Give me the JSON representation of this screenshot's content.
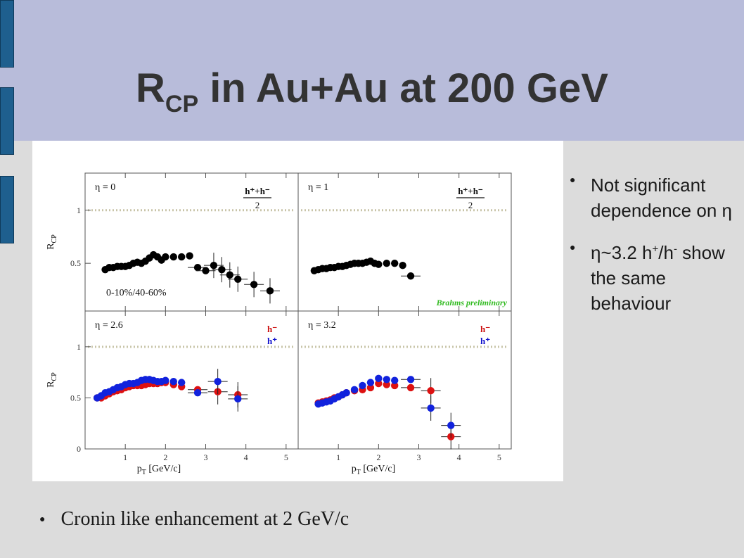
{
  "slide": {
    "title_main": "R",
    "title_sub": "CP",
    "title_rest": " in Au+Au at 200 GeV",
    "bullets_right": [
      {
        "text": "Not significant dependence on η"
      },
      {
        "pre": "η~3.2 h",
        "sup1": "+",
        "mid": "/h",
        "sup2": "-",
        "post": " show the same behaviour"
      }
    ],
    "bullet_bottom": "Cronin like enhancement at 2 GeV/c"
  },
  "chart_data": {
    "type": "scatter",
    "xlabel_main": "p",
    "xlabel_sub": "T",
    "xlabel_rest": " [GeV/c]",
    "ylabel_main": "R",
    "ylabel_sub": "CP",
    "xlim": [
      0,
      5.3
    ],
    "x_ticks": [
      "1",
      "2",
      "3",
      "4",
      "5"
    ],
    "reference_line": 1,
    "reference_color": "#c8c4a8",
    "panels": [
      {
        "id": "eta0",
        "label": "η = 0",
        "ylim": [
          0.05,
          1.35
        ],
        "y_ticks": [
          "1",
          "0.5"
        ],
        "legend_frac": {
          "num": "h⁺+h⁻",
          "den": "2"
        },
        "annotation": "0-10%/40-60%",
        "series": [
          {
            "color": "#000000",
            "x": [
              0.5,
              0.6,
              0.7,
              0.8,
              0.9,
              1.0,
              1.1,
              1.2,
              1.3,
              1.4,
              1.5,
              1.6,
              1.7,
              1.8,
              1.9,
              2.0,
              2.2,
              2.4,
              2.6,
              2.8,
              3.0,
              3.2,
              3.4,
              3.6,
              3.8,
              4.2,
              4.6
            ],
            "y": [
              0.44,
              0.46,
              0.46,
              0.47,
              0.47,
              0.47,
              0.48,
              0.5,
              0.51,
              0.5,
              0.52,
              0.55,
              0.58,
              0.56,
              0.53,
              0.56,
              0.56,
              0.56,
              0.57,
              0.46,
              0.43,
              0.48,
              0.44,
              0.39,
              0.35,
              0.3,
              0.24
            ]
          }
        ]
      },
      {
        "id": "eta1",
        "label": "η = 1",
        "ylim": [
          0.05,
          1.35
        ],
        "y_ticks": [],
        "legend_frac": {
          "num": "h⁺+h⁻",
          "den": "2"
        },
        "watermark": "Brahms preliminary",
        "series": [
          {
            "color": "#000000",
            "x": [
              0.4,
              0.5,
              0.6,
              0.7,
              0.8,
              0.9,
              1.0,
              1.1,
              1.2,
              1.3,
              1.4,
              1.5,
              1.6,
              1.7,
              1.8,
              1.9,
              2.0,
              2.2,
              2.4,
              2.6,
              2.8
            ],
            "y": [
              0.43,
              0.44,
              0.45,
              0.45,
              0.46,
              0.46,
              0.47,
              0.47,
              0.48,
              0.49,
              0.5,
              0.5,
              0.5,
              0.51,
              0.52,
              0.5,
              0.49,
              0.5,
              0.5,
              0.48,
              0.38
            ]
          }
        ]
      },
      {
        "id": "eta26",
        "label": "η = 2.6",
        "ylim": [
          0,
          1.35
        ],
        "y_ticks": [
          "1",
          "0.5",
          "0"
        ],
        "legend": [
          {
            "name": "h⁻",
            "color": "#cc1111"
          },
          {
            "name": "h⁺",
            "color": "#1111cc"
          }
        ],
        "series": [
          {
            "name": "h⁻",
            "color": "#dd1111",
            "x": [
              0.3,
              0.4,
              0.5,
              0.6,
              0.7,
              0.8,
              0.9,
              1.0,
              1.1,
              1.2,
              1.3,
              1.4,
              1.5,
              1.6,
              1.7,
              1.8,
              1.9,
              2.0,
              2.2,
              2.4,
              2.8,
              3.3,
              3.8
            ],
            "y": [
              0.5,
              0.5,
              0.52,
              0.54,
              0.56,
              0.57,
              0.58,
              0.6,
              0.61,
              0.62,
              0.62,
              0.62,
              0.63,
              0.64,
              0.64,
              0.64,
              0.65,
              0.65,
              0.63,
              0.61,
              0.58,
              0.56,
              0.53
            ]
          },
          {
            "name": "h⁺",
            "color": "#1122dd",
            "x": [
              0.3,
              0.4,
              0.5,
              0.6,
              0.7,
              0.8,
              0.9,
              1.0,
              1.1,
              1.2,
              1.3,
              1.4,
              1.5,
              1.6,
              1.7,
              1.8,
              1.9,
              2.0,
              2.2,
              2.4,
              2.8,
              3.3,
              3.8
            ],
            "y": [
              0.5,
              0.52,
              0.55,
              0.56,
              0.58,
              0.6,
              0.61,
              0.63,
              0.64,
              0.64,
              0.65,
              0.67,
              0.68,
              0.68,
              0.67,
              0.66,
              0.66,
              0.67,
              0.66,
              0.65,
              0.55,
              0.66,
              0.49
            ]
          }
        ]
      },
      {
        "id": "eta32",
        "label": "η = 3.2",
        "ylim": [
          0,
          1.35
        ],
        "y_ticks": [],
        "legend": [
          {
            "name": "h⁻",
            "color": "#cc1111"
          },
          {
            "name": "h⁺",
            "color": "#1111cc"
          }
        ],
        "series": [
          {
            "name": "h⁻",
            "color": "#dd1111",
            "x": [
              0.5,
              0.6,
              0.7,
              0.8,
              0.9,
              1.0,
              1.1,
              1.2,
              1.4,
              1.6,
              1.8,
              2.0,
              2.2,
              2.4,
              2.8,
              3.3,
              3.8
            ],
            "y": [
              0.45,
              0.46,
              0.47,
              0.48,
              0.5,
              0.51,
              0.53,
              0.55,
              0.57,
              0.58,
              0.6,
              0.64,
              0.63,
              0.62,
              0.6,
              0.57,
              0.12
            ]
          },
          {
            "name": "h⁺",
            "color": "#1122dd",
            "x": [
              0.5,
              0.6,
              0.7,
              0.8,
              0.9,
              1.0,
              1.1,
              1.2,
              1.4,
              1.6,
              1.8,
              2.0,
              2.2,
              2.4,
              2.8,
              3.3,
              3.8
            ],
            "y": [
              0.44,
              0.45,
              0.46,
              0.47,
              0.49,
              0.51,
              0.53,
              0.55,
              0.58,
              0.62,
              0.65,
              0.69,
              0.68,
              0.67,
              0.68,
              0.4,
              0.23
            ]
          }
        ]
      }
    ]
  }
}
